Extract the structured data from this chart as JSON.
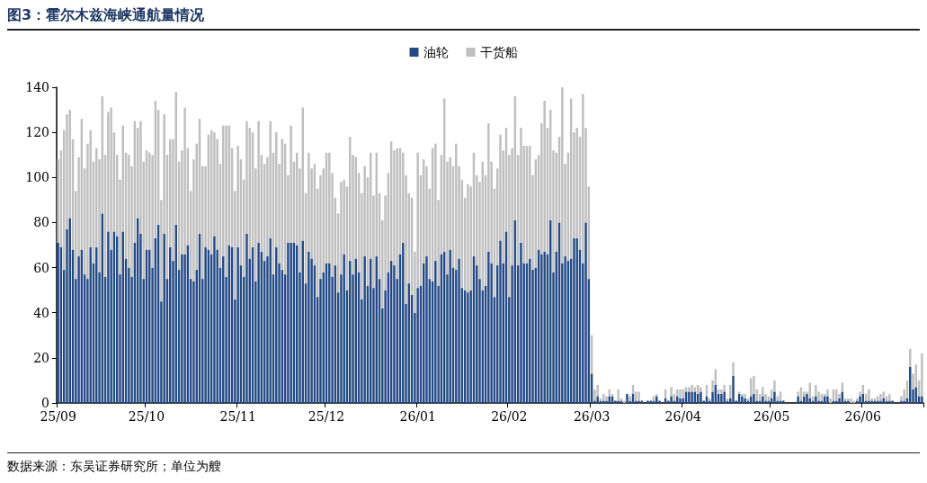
{
  "chart_data": {
    "type": "bar",
    "title": "图3：霍尔木兹海峡通航量情况",
    "annotations": [
      "数据来源：东吴证券研究所；单位为艘"
    ],
    "stacked": true,
    "legend": "top",
    "grid": false,
    "ylim": [
      0,
      140
    ],
    "yticks": [
      0,
      20,
      40,
      60,
      80,
      100,
      120,
      140
    ],
    "categories": [
      "25/09",
      null,
      null,
      null,
      null,
      null,
      null,
      null,
      null,
      null,
      null,
      null,
      null,
      null,
      null,
      null,
      null,
      null,
      null,
      null,
      null,
      null,
      null,
      null,
      null,
      null,
      null,
      null,
      null,
      null,
      "25/10",
      null,
      null,
      null,
      null,
      null,
      null,
      null,
      null,
      null,
      null,
      null,
      null,
      null,
      null,
      null,
      null,
      null,
      null,
      null,
      null,
      null,
      null,
      null,
      null,
      null,
      null,
      null,
      null,
      null,
      null,
      "25/11",
      null,
      null,
      null,
      null,
      null,
      null,
      null,
      null,
      null,
      null,
      null,
      null,
      null,
      null,
      null,
      null,
      null,
      null,
      null,
      null,
      null,
      null,
      null,
      null,
      null,
      null,
      null,
      null,
      null,
      "25/12",
      null,
      null,
      null,
      null,
      null,
      null,
      null,
      null,
      null,
      null,
      null,
      null,
      null,
      null,
      null,
      null,
      null,
      null,
      null,
      null,
      null,
      null,
      null,
      null,
      null,
      null,
      null,
      null,
      null,
      null,
      "26/01",
      null,
      null,
      null,
      null,
      null,
      null,
      null,
      null,
      null,
      null,
      null,
      null,
      null,
      null,
      null,
      null,
      null,
      null,
      null,
      null,
      null,
      null,
      null,
      null,
      null,
      null,
      null,
      null,
      null,
      null,
      "26/02",
      null,
      null,
      null,
      null,
      null,
      null,
      null,
      null,
      null,
      null,
      null,
      null,
      null,
      null,
      null,
      null,
      null,
      null,
      null,
      null,
      null,
      null,
      null,
      null,
      null,
      null,
      null,
      "26/03",
      null,
      null,
      null,
      null,
      null,
      null,
      null,
      null,
      null,
      null,
      null,
      null,
      null,
      null,
      null,
      null,
      null,
      null,
      null,
      null,
      null,
      null,
      null,
      null,
      null,
      null,
      null,
      null,
      null,
      null,
      "26/04",
      null,
      null,
      null,
      null,
      null,
      null,
      null,
      null,
      null,
      null,
      null,
      null,
      null,
      null,
      null,
      null,
      null,
      null,
      null,
      null,
      null,
      null,
      null,
      null,
      null,
      null,
      null,
      null,
      null,
      "26/05",
      null,
      null,
      null,
      null,
      null,
      null,
      null,
      null,
      null,
      null,
      null,
      null,
      null,
      null,
      null,
      null,
      null,
      null,
      null,
      null,
      null,
      null,
      null,
      null,
      null,
      null,
      null,
      null,
      null,
      null,
      "26/06",
      null,
      null,
      null,
      null,
      null,
      null,
      null,
      null,
      null,
      null,
      null,
      null,
      null,
      null,
      null,
      null,
      null,
      null,
      null,
      null
    ],
    "series": [
      {
        "name": "油轮",
        "color": "#244a86",
        "values": [
          71,
          69,
          59,
          77,
          82,
          68,
          55,
          65,
          68,
          57,
          55,
          69,
          62,
          69,
          58,
          84,
          56,
          76,
          68,
          76,
          74,
          57,
          76,
          64,
          60,
          56,
          71,
          82,
          75,
          55,
          68,
          68,
          60,
          73,
          79,
          45,
          75,
          55,
          69,
          63,
          79,
          59,
          66,
          66,
          70,
          55,
          54,
          59,
          75,
          55,
          69,
          68,
          66,
          74,
          68,
          60,
          65,
          56,
          70,
          69,
          46,
          69,
          61,
          56,
          75,
          64,
          69,
          54,
          71,
          67,
          63,
          65,
          73,
          57,
          69,
          62,
          59,
          57,
          71,
          71,
          71,
          70,
          58,
          72,
          53,
          67,
          64,
          61,
          47,
          55,
          58,
          62,
          62,
          56,
          61,
          49,
          57,
          66,
          50,
          63,
          57,
          64,
          58,
          46,
          65,
          52,
          64,
          51,
          65,
          55,
          42,
          50,
          58,
          63,
          61,
          55,
          66,
          71,
          44,
          53,
          48,
          40,
          51,
          52,
          62,
          65,
          55,
          54,
          63,
          52,
          66,
          67,
          57,
          68,
          60,
          59,
          64,
          51,
          50,
          49,
          50,
          65,
          61,
          55,
          50,
          52,
          67,
          62,
          47,
          61,
          72,
          62,
          76,
          47,
          61,
          81,
          61,
          71,
          62,
          62,
          64,
          59,
          60,
          68,
          66,
          67,
          66,
          81,
          58,
          67,
          80,
          62,
          65,
          63,
          64,
          73,
          73,
          68,
          62,
          80,
          55,
          13,
          1,
          3,
          1,
          1,
          1,
          3,
          3,
          1,
          1,
          1,
          0,
          4,
          1,
          4,
          1,
          1,
          1,
          0,
          1,
          1,
          1,
          3,
          1,
          0,
          2,
          1,
          3,
          1,
          3,
          2,
          2,
          5,
          5,
          5,
          5,
          4,
          5,
          1,
          3,
          1,
          5,
          8,
          4,
          4,
          5,
          1,
          2,
          12,
          1,
          4,
          3,
          2,
          1,
          3,
          4,
          1,
          1,
          3,
          1,
          1,
          2,
          5,
          1,
          1,
          1,
          0,
          0,
          0,
          0,
          3,
          1,
          3,
          4,
          2,
          1,
          3,
          1,
          1,
          3,
          3,
          0,
          1,
          1,
          2,
          5,
          1,
          1,
          0,
          0,
          1,
          3,
          4,
          1,
          1,
          1,
          1,
          1,
          1,
          2,
          1,
          1,
          1,
          0,
          0,
          1,
          1,
          2,
          16,
          6,
          7,
          3,
          3
        ]
      },
      {
        "name": "干货船",
        "color": "#bfbfbf",
        "values": [
          37,
          43,
          62,
          51,
          48,
          49,
          39,
          44,
          58,
          47,
          60,
          52,
          45,
          44,
          50,
          52,
          54,
          53,
          63,
          44,
          36,
          42,
          47,
          47,
          50,
          49,
          54,
          40,
          50,
          52,
          44,
          43,
          50,
          61,
          51,
          45,
          53,
          55,
          48,
          54,
          59,
          48,
          46,
          65,
          43,
          39,
          54,
          56,
          51,
          50,
          36,
          51,
          55,
          46,
          49,
          46,
          58,
          67,
          53,
          44,
          48,
          45,
          47,
          43,
          50,
          58,
          51,
          50,
          54,
          43,
          43,
          44,
          52,
          54,
          51,
          44,
          58,
          58,
          30,
          52,
          36,
          41,
          46,
          59,
          40,
          44,
          40,
          45,
          48,
          46,
          46,
          49,
          49,
          46,
          30,
          35,
          41,
          33,
          46,
          55,
          53,
          45,
          44,
          47,
          40,
          48,
          47,
          41,
          46,
          38,
          39,
          42,
          44,
          53,
          51,
          58,
          47,
          40,
          57,
          40,
          43,
          27,
          60,
          49,
          46,
          40,
          40,
          59,
          52,
          38,
          44,
          68,
          50,
          41,
          45,
          56,
          41,
          48,
          41,
          48,
          46,
          46,
          40,
          43,
          57,
          49,
          57,
          45,
          48,
          43,
          47,
          50,
          46,
          63,
          52,
          55,
          49,
          51,
          52,
          52,
          50,
          42,
          48,
          42,
          58,
          67,
          56,
          49,
          54,
          44,
          38,
          78,
          41,
          48,
          71,
          47,
          49,
          50,
          75,
          42,
          41,
          17,
          5,
          5,
          1,
          3,
          2,
          3,
          1,
          0,
          5,
          1,
          1,
          0,
          2,
          4,
          4,
          4,
          0,
          0,
          0,
          0,
          2,
          1,
          0,
          0,
          4,
          0,
          4,
          3,
          3,
          4,
          4,
          2,
          2,
          3,
          2,
          4,
          2,
          0,
          5,
          1,
          5,
          7,
          2,
          2,
          3,
          1,
          6,
          6,
          0,
          1,
          1,
          2,
          1,
          8,
          8,
          5,
          3,
          4,
          3,
          2,
          4,
          5,
          2,
          4,
          0,
          0,
          0,
          0,
          0,
          2,
          6,
          2,
          1,
          7,
          2,
          5,
          4,
          3,
          1,
          3,
          2,
          5,
          5,
          2,
          4,
          1,
          1,
          2,
          1,
          1,
          2,
          4,
          3,
          5,
          1,
          1,
          2,
          3,
          3,
          2,
          3,
          0,
          0,
          0,
          2,
          5,
          8,
          8,
          7,
          10,
          7,
          19
        ]
      }
    ]
  }
}
